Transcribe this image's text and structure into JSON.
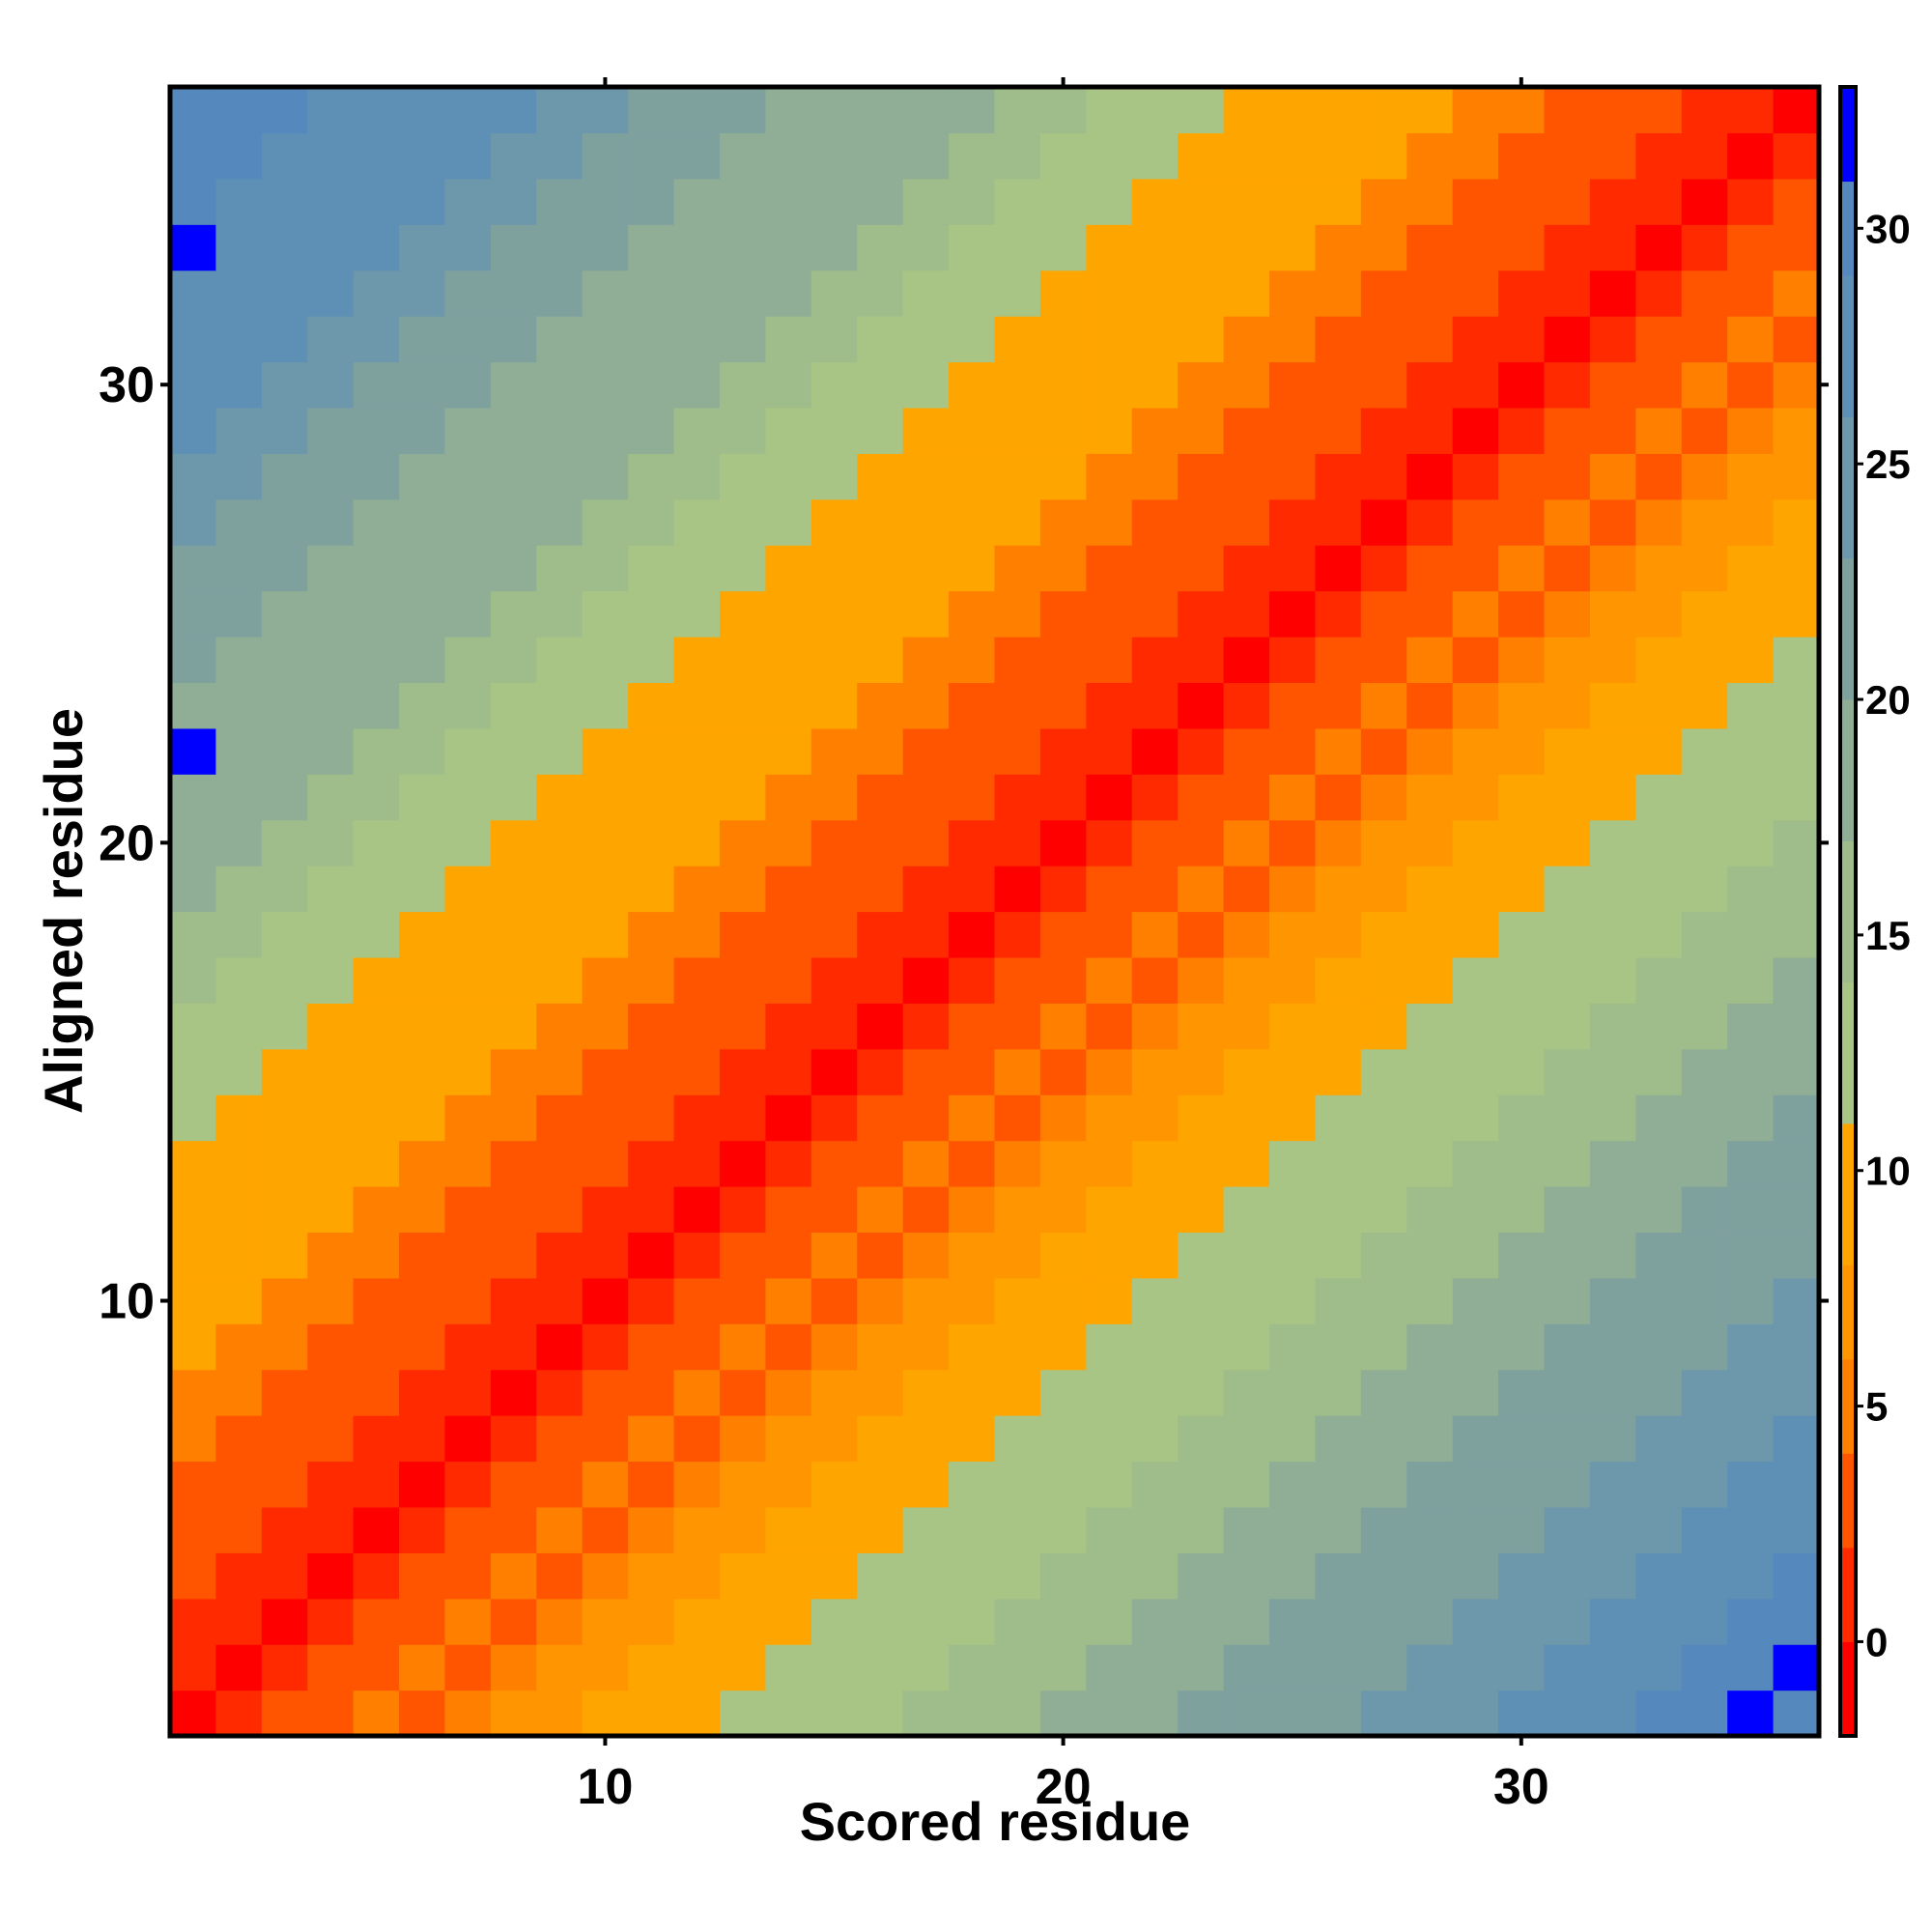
{
  "chart_data": {
    "type": "heatmap",
    "title": "",
    "xlabel": "Scored residue",
    "ylabel": "Aligned residue",
    "x_range": [
      1,
      36
    ],
    "y_range": [
      1,
      36
    ],
    "x_ticks": [
      10,
      20,
      30
    ],
    "y_ticks": [
      10,
      20,
      30
    ],
    "legend": {
      "position": "right",
      "ticks": [
        0,
        5,
        10,
        15,
        20,
        25,
        30
      ],
      "range": [
        -2,
        33
      ],
      "bands": [
        {
          "from": -2,
          "to": 0,
          "color": "#ff0000"
        },
        {
          "from": 0,
          "to": 2,
          "color": "#ff2a00"
        },
        {
          "from": 2,
          "to": 4,
          "color": "#ff5500"
        },
        {
          "from": 4,
          "to": 6,
          "color": "#ff7f00"
        },
        {
          "from": 6,
          "to": 8,
          "color": "#ff9500"
        },
        {
          "from": 8,
          "to": 11,
          "color": "#ffa500"
        },
        {
          "from": 11,
          "to": 14,
          "color": "#a8c585"
        },
        {
          "from": 14,
          "to": 17,
          "color": "#9fbd8a"
        },
        {
          "from": 17,
          "to": 20,
          "color": "#8fae95"
        },
        {
          "from": 20,
          "to": 23,
          "color": "#7fa19e"
        },
        {
          "from": 23,
          "to": 26,
          "color": "#6d97aa"
        },
        {
          "from": 26,
          "to": 29,
          "color": "#5e8fb5"
        },
        {
          "from": 29,
          "to": 31,
          "color": "#5588bc"
        },
        {
          "from": 31,
          "to": 33,
          "color": "#0000ff"
        }
      ]
    },
    "cell_rule": {
      "description": "value = |scored - aligned| * 0.9 + 0.5 * ((scored * 7 + aligned * 3) % 5) - 1, except listed overrides",
      "overrides": [
        {
          "x": 1,
          "y": 22,
          "value": 33
        },
        {
          "x": 1,
          "y": 33,
          "value": 33
        }
      ]
    }
  }
}
